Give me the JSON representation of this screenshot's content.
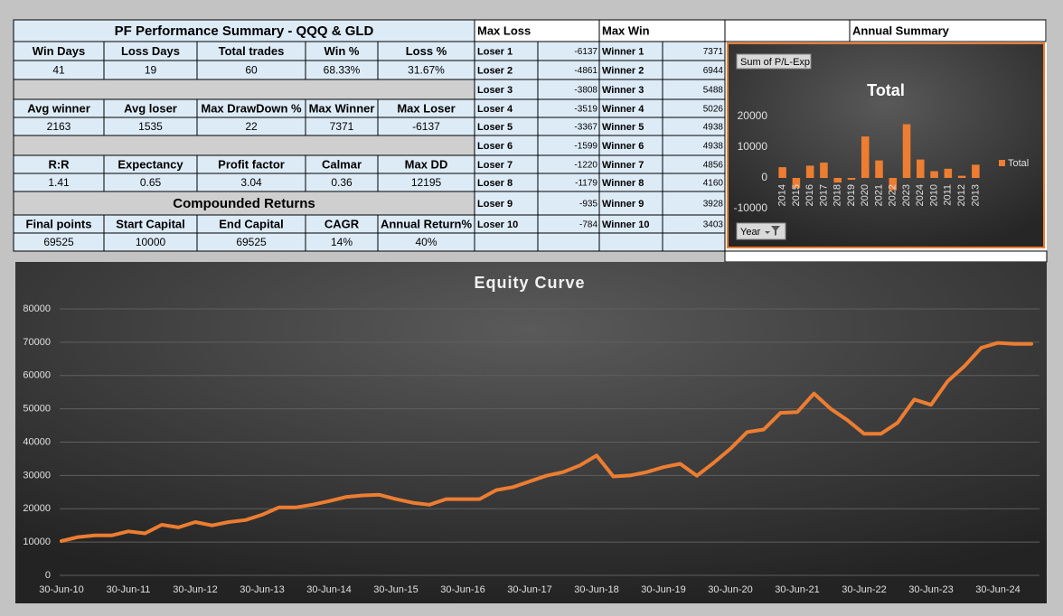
{
  "summary": {
    "title": "PF Performance Summary - QQQ & GLD",
    "blocks": [
      {
        "headers": [
          "Win Days",
          "Loss Days",
          "Total trades",
          "Win %",
          "Loss %"
        ],
        "values": [
          41,
          19,
          60,
          "68.33%",
          "31.67%"
        ]
      },
      {
        "headers": [
          "Avg winner",
          "Avg loser",
          "Max DrawDown %",
          "Max Winner",
          "Max Loser"
        ],
        "values": [
          2163,
          1535,
          22,
          7371,
          -6137
        ]
      },
      {
        "headers": [
          "R:R",
          "Expectancy",
          "Profit factor",
          "Calmar",
          "Max DD"
        ],
        "values": [
          1.41,
          0.65,
          3.04,
          0.36,
          12195
        ]
      }
    ],
    "compounded": {
      "title": "Compounded Returns",
      "headers": [
        "Final points",
        "Start Capital",
        "End Capital",
        "CAGR",
        "Annual Return%"
      ],
      "values": [
        69525,
        10000,
        69525,
        "14%",
        "40%"
      ]
    }
  },
  "max_loss": {
    "title": "Max Loss",
    "rows": [
      {
        "label": "Loser 1",
        "value": -6137
      },
      {
        "label": "Loser 2",
        "value": -4861
      },
      {
        "label": "Loser 3",
        "value": -3808
      },
      {
        "label": "Loser 4",
        "value": -3519
      },
      {
        "label": "Loser 5",
        "value": -3367
      },
      {
        "label": "Loser 6",
        "value": -1599
      },
      {
        "label": "Loser 7",
        "value": -1220
      },
      {
        "label": "Loser 8",
        "value": -1179
      },
      {
        "label": "Loser 9",
        "value": -935
      },
      {
        "label": "Loser 10",
        "value": -784
      }
    ]
  },
  "max_win": {
    "title": "Max  Win",
    "rows": [
      {
        "label": "Winner 1",
        "value": 7371
      },
      {
        "label": "Winner 2",
        "value": 6944
      },
      {
        "label": "Winner 3",
        "value": 5488
      },
      {
        "label": "Winner 4",
        "value": 5026
      },
      {
        "label": "Winner 5",
        "value": 4938
      },
      {
        "label": "Winner 6",
        "value": 4938
      },
      {
        "label": "Winner 7",
        "value": 4856
      },
      {
        "label": "Winner 8",
        "value": 4160
      },
      {
        "label": "Winner 9",
        "value": 3928
      },
      {
        "label": "Winner 10",
        "value": 3403
      }
    ]
  },
  "annual_summary": {
    "title": "Annual Summary"
  },
  "chart_data": [
    {
      "type": "bar",
      "title": "Total",
      "field_label": "Sum of P/L-Exp",
      "filter_label": "Year",
      "categories": [
        "2014",
        "2015",
        "2016",
        "2017",
        "2018",
        "2019",
        "2020",
        "2021",
        "2022",
        "2023",
        "2024",
        "2010",
        "2011",
        "2012",
        "2013"
      ],
      "series": [
        {
          "name": "Total",
          "color": "#ed7d31",
          "values": [
            3500,
            -3300,
            4000,
            5000,
            -1500,
            -600,
            13500,
            5700,
            -4000,
            17500,
            6000,
            2200,
            3000,
            700,
            4300
          ]
        }
      ],
      "ylim": [
        -10000,
        20000
      ],
      "yticks": [
        -10000,
        0,
        10000,
        20000
      ],
      "legend": "right"
    },
    {
      "type": "line",
      "title": "Equity Curve",
      "categories": [
        "30-Jun-10",
        null,
        null,
        null,
        "30-Jun-11",
        null,
        null,
        null,
        "30-Jun-12",
        null,
        null,
        null,
        "30-Jun-13",
        null,
        null,
        null,
        "30-Jun-14",
        null,
        null,
        null,
        "30-Jun-15",
        null,
        null,
        null,
        "30-Jun-16",
        null,
        null,
        null,
        "30-Jun-17",
        null,
        null,
        null,
        "30-Jun-18",
        null,
        null,
        null,
        "30-Jun-19",
        null,
        null,
        null,
        "30-Jun-20",
        null,
        null,
        null,
        "30-Jun-21",
        null,
        null,
        null,
        "30-Jun-22",
        null,
        null,
        null,
        "30-Jun-23",
        null,
        null,
        null,
        "30-Jun-24",
        null,
        null
      ],
      "values": [
        10300,
        11500,
        12000,
        12000,
        13200,
        12600,
        15200,
        14400,
        16000,
        15000,
        16000,
        16600,
        18200,
        20400,
        20400,
        21200,
        22300,
        23500,
        24000,
        24200,
        22900,
        21800,
        21200,
        22900,
        22900,
        22900,
        25600,
        26500,
        28200,
        29900,
        31000,
        33000,
        36000,
        29700,
        30000,
        31000,
        32500,
        33500,
        29900,
        33800,
        38000,
        43000,
        43800,
        48800,
        49000,
        54600,
        50000,
        46600,
        42500,
        42500,
        45800,
        52800,
        51200,
        58300,
        62800,
        68300,
        69800,
        69500,
        69500
      ],
      "color": "#ed7d31",
      "ylim": [
        0,
        80000
      ],
      "yticks": [
        0,
        10000,
        20000,
        30000,
        40000,
        50000,
        60000,
        70000,
        80000
      ],
      "grid": true
    }
  ]
}
